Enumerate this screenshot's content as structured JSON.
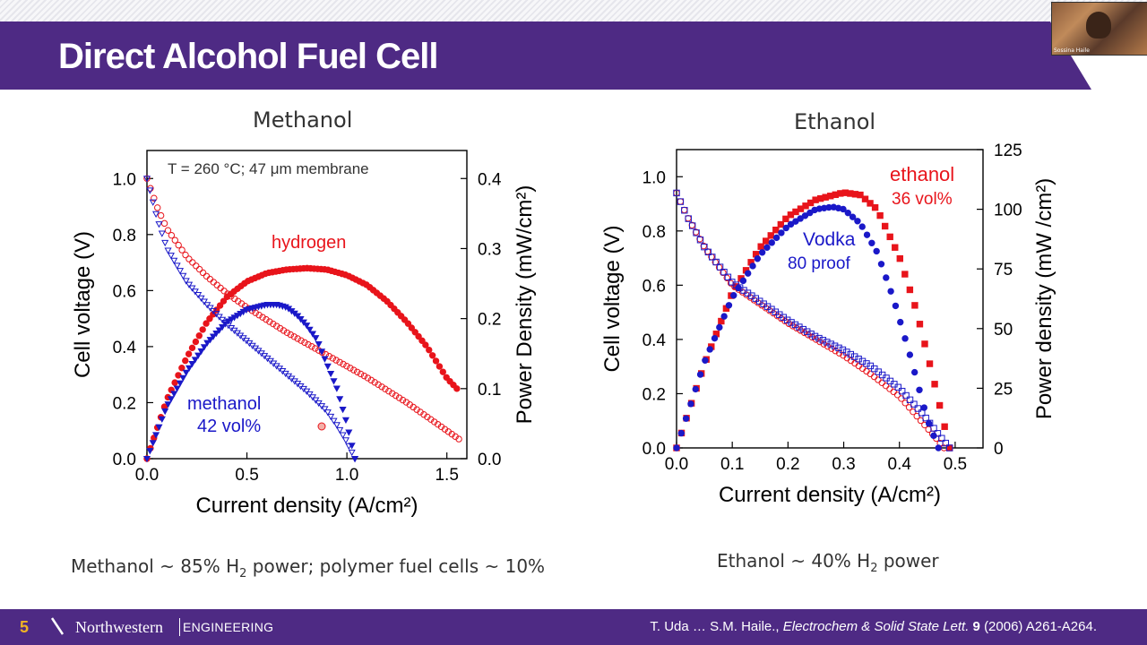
{
  "slide": {
    "title": "Direct Alcohol Fuel Cell",
    "number": "5",
    "footer_brand": "Northwestern",
    "footer_dept": "ENGINEERING",
    "citation": {
      "authors": "T. Uda … S.M. Haile., ",
      "journal": "Electrochem & Solid State Lett.",
      "volume": "9",
      "pages": "(2006) A261-A264."
    },
    "webcam_name": "Sossina Haile"
  },
  "notes": {
    "methanol_pre": "Methanol ~ 85% H",
    "methanol_sub": "2",
    "methanol_post": " power; polymer fuel cells ~ 10%",
    "ethanol_pre": "Ethanol ~ 40% H",
    "ethanol_sub": "2",
    "ethanol_post": " power"
  },
  "colors": {
    "brand_purple": "#4e2a84",
    "slide_number": "#f0b323",
    "hydrogen_red": "#e8141b",
    "methanol_blue": "#1a18c8",
    "text_dark": "#333333"
  },
  "chart_data": [
    {
      "type": "line",
      "title": "Methanol",
      "annotation": "T = 260 °C; 47 μm membrane",
      "xlabel": "Current density (A/cm²)",
      "ylabel_left": "Cell voltage (V)",
      "ylabel_right": "Power Density (mW/cm²)",
      "xlim": [
        0,
        1.6
      ],
      "ylim_left": [
        0,
        1.1
      ],
      "ylim_right": [
        0,
        0.44
      ],
      "x_ticks": [
        "0.0",
        "0.5",
        "1.0",
        "1.5"
      ],
      "y_left_ticks": [
        "0.0",
        "0.2",
        "0.4",
        "0.6",
        "0.8",
        "1.0"
      ],
      "y_right_ticks": [
        "0.0",
        "0.1",
        "0.2",
        "0.3",
        "0.4"
      ],
      "grid": false,
      "series": [
        {
          "name": "hydrogen",
          "axis": "left",
          "color": "#e8141b",
          "marker": "open-circle",
          "x": [
            0.0,
            0.05,
            0.1,
            0.2,
            0.3,
            0.4,
            0.5,
            0.7,
            0.9,
            1.1,
            1.3,
            1.5,
            1.56
          ],
          "y": [
            1.0,
            0.9,
            0.82,
            0.72,
            0.65,
            0.59,
            0.54,
            0.45,
            0.37,
            0.29,
            0.2,
            0.1,
            0.07
          ]
        },
        {
          "name": "hydrogen power",
          "axis": "right",
          "color": "#e8141b",
          "marker": "filled-circle",
          "x": [
            0.0,
            0.1,
            0.2,
            0.3,
            0.4,
            0.5,
            0.6,
            0.7,
            0.8,
            0.9,
            1.0,
            1.1,
            1.2,
            1.3,
            1.4,
            1.5,
            1.55
          ],
          "y": [
            0.0,
            0.085,
            0.145,
            0.195,
            0.231,
            0.253,
            0.265,
            0.27,
            0.272,
            0.27,
            0.262,
            0.248,
            0.225,
            0.195,
            0.16,
            0.115,
            0.1
          ]
        },
        {
          "name": "methanol",
          "axis": "left",
          "color": "#1a18c8",
          "marker": "open-triangle",
          "x": [
            0.0,
            0.05,
            0.1,
            0.2,
            0.3,
            0.4,
            0.5,
            0.6,
            0.7,
            0.8,
            0.9,
            0.95,
            1.0,
            1.04
          ],
          "y": [
            1.0,
            0.86,
            0.75,
            0.63,
            0.55,
            0.48,
            0.42,
            0.36,
            0.3,
            0.24,
            0.17,
            0.12,
            0.06,
            0.0
          ]
        },
        {
          "name": "methanol power",
          "axis": "right",
          "color": "#1a18c8",
          "marker": "filled-triangle",
          "x": [
            0.0,
            0.1,
            0.2,
            0.3,
            0.4,
            0.5,
            0.6,
            0.65,
            0.7,
            0.75,
            0.8,
            0.85,
            0.9,
            0.95,
            1.0,
            1.04
          ],
          "y": [
            0.0,
            0.075,
            0.125,
            0.165,
            0.195,
            0.213,
            0.22,
            0.22,
            0.216,
            0.205,
            0.19,
            0.17,
            0.135,
            0.1,
            0.05,
            0.0
          ]
        }
      ],
      "labels": [
        {
          "text": "hydrogen",
          "color": "#e8141b"
        },
        {
          "text": "methanol",
          "color": "#1a18c8"
        },
        {
          "text": "42 vol%",
          "color": "#1a18c8"
        }
      ]
    },
    {
      "type": "line",
      "title": "Ethanol",
      "xlabel": "Current density (A/cm²)",
      "ylabel_left": "Cell voltage (V)",
      "ylabel_right": "Power density (mW /cm²)",
      "xlim": [
        0,
        0.55
      ],
      "ylim_left": [
        0,
        1.1
      ],
      "ylim_right": [
        0,
        125
      ],
      "x_ticks": [
        "0.0",
        "0.1",
        "0.2",
        "0.3",
        "0.4",
        "0.5"
      ],
      "y_left_ticks": [
        "0.0",
        "0.2",
        "0.4",
        "0.6",
        "0.8",
        "1.0"
      ],
      "y_right_ticks": [
        "0",
        "25",
        "50",
        "75",
        "100",
        "125"
      ],
      "grid": false,
      "series": [
        {
          "name": "ethanol",
          "axis": "left",
          "color": "#e8141b",
          "marker": "open-circle",
          "x": [
            0.0,
            0.02,
            0.05,
            0.1,
            0.15,
            0.2,
            0.25,
            0.3,
            0.35,
            0.4,
            0.43,
            0.46,
            0.48
          ],
          "y": [
            0.94,
            0.85,
            0.74,
            0.6,
            0.53,
            0.46,
            0.4,
            0.34,
            0.27,
            0.19,
            0.12,
            0.05,
            0.0
          ]
        },
        {
          "name": "ethanol power",
          "axis": "right",
          "color": "#e8141b",
          "marker": "filled-square",
          "x": [
            0.0,
            0.05,
            0.1,
            0.15,
            0.2,
            0.25,
            0.3,
            0.33,
            0.36,
            0.4,
            0.43,
            0.46,
            0.48,
            0.49
          ],
          "y": [
            0,
            35,
            65,
            84,
            97,
            104,
            107,
            106,
            100,
            80,
            58,
            30,
            10,
            0
          ]
        },
        {
          "name": "Vodka",
          "axis": "left",
          "color": "#1a18c8",
          "marker": "open-square",
          "x": [
            0.0,
            0.02,
            0.05,
            0.1,
            0.15,
            0.2,
            0.25,
            0.3,
            0.35,
            0.4,
            0.44,
            0.47,
            0.49
          ],
          "y": [
            0.94,
            0.85,
            0.74,
            0.61,
            0.54,
            0.47,
            0.41,
            0.36,
            0.3,
            0.22,
            0.13,
            0.05,
            0.0
          ]
        },
        {
          "name": "Vodka power",
          "axis": "right",
          "color": "#1a18c8",
          "marker": "filled-circle",
          "x": [
            0.0,
            0.05,
            0.1,
            0.15,
            0.2,
            0.25,
            0.28,
            0.3,
            0.33,
            0.36,
            0.39,
            0.42,
            0.45,
            0.47
          ],
          "y": [
            0,
            36,
            63,
            81,
            93,
            100,
            101,
            100,
            94,
            82,
            62,
            38,
            12,
            0
          ]
        }
      ],
      "labels": [
        {
          "text": "ethanol",
          "color": "#e8141b"
        },
        {
          "text": "36 vol%",
          "color": "#e8141b"
        },
        {
          "text": "Vodka",
          "color": "#1a18c8"
        },
        {
          "text": "80 proof",
          "color": "#1a18c8"
        }
      ]
    }
  ]
}
